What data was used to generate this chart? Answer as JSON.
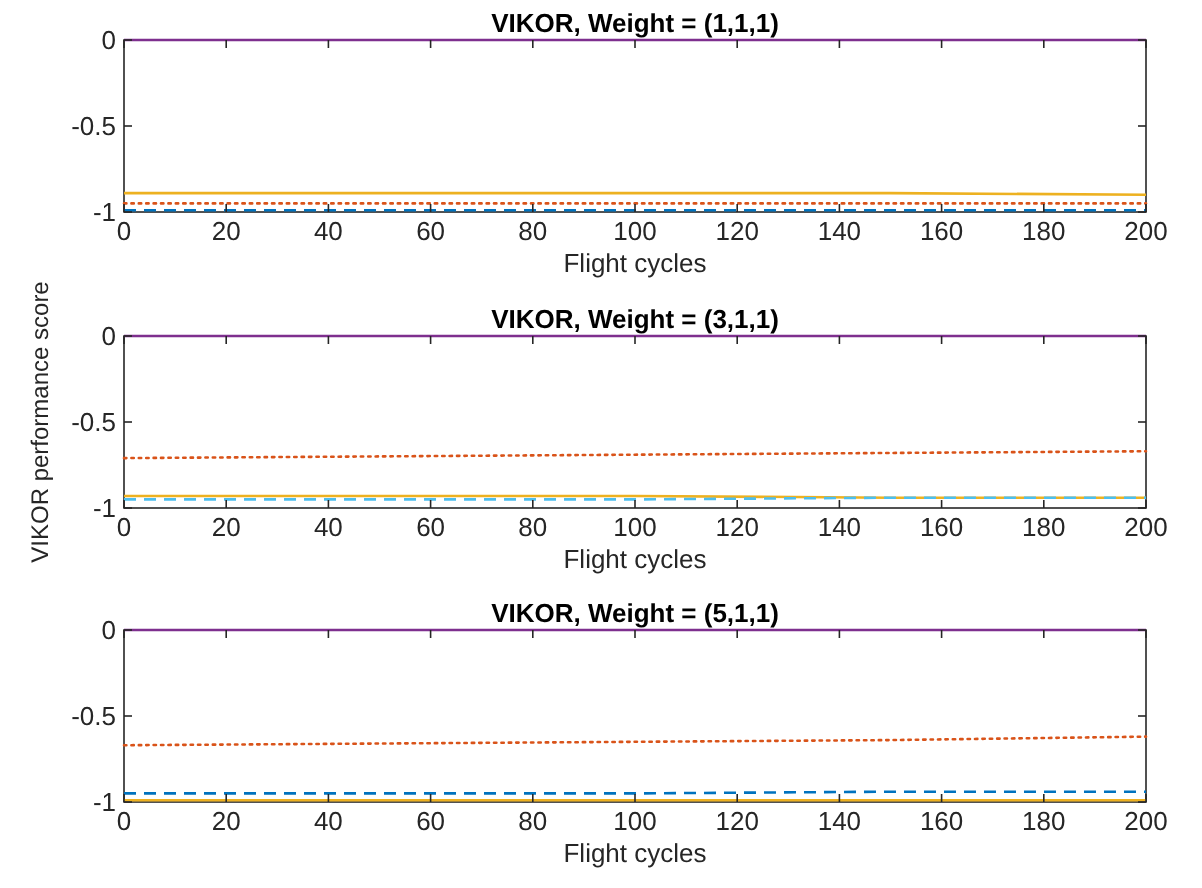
{
  "chart_data": [
    {
      "type": "line",
      "title": "VIKOR, Weight = (1,1,1)",
      "xlabel": "Flight cycles",
      "x": [
        0,
        50,
        100,
        150,
        200
      ],
      "xlim": [
        0,
        200
      ],
      "xticks": [
        0,
        20,
        40,
        60,
        80,
        100,
        120,
        140,
        160,
        180,
        200
      ],
      "ylim": [
        -1,
        0
      ],
      "yticks": [
        -1,
        -0.5,
        0
      ],
      "grid": false,
      "marker": "none",
      "series": [
        {
          "color": "#7e2f8e",
          "line_style": "solid",
          "values": [
            0,
            0,
            0,
            0,
            0
          ]
        },
        {
          "color": "#edb120",
          "line_style": "solid",
          "values": [
            -0.89,
            -0.89,
            -0.89,
            -0.89,
            -0.9
          ]
        },
        {
          "color": "#d95319",
          "line_style": "dotted",
          "values": [
            -0.95,
            -0.95,
            -0.95,
            -0.95,
            -0.95
          ]
        },
        {
          "color": "#0072bd",
          "line_style": "dashed",
          "values": [
            -0.99,
            -0.99,
            -0.99,
            -0.99,
            -0.99
          ]
        }
      ]
    },
    {
      "type": "line",
      "title": "VIKOR, Weight = (3,1,1)",
      "xlabel": "Flight cycles",
      "ylabel": "VIKOR performance score",
      "x": [
        0,
        50,
        100,
        150,
        200
      ],
      "xlim": [
        0,
        200
      ],
      "xticks": [
        0,
        20,
        40,
        60,
        80,
        100,
        120,
        140,
        160,
        180,
        200
      ],
      "ylim": [
        -1,
        0
      ],
      "yticks": [
        -1,
        -0.5,
        0
      ],
      "grid": false,
      "marker": "none",
      "series": [
        {
          "color": "#7e2f8e",
          "line_style": "solid",
          "values": [
            0,
            0,
            0,
            0,
            0
          ]
        },
        {
          "color": "#d95319",
          "line_style": "dotted",
          "values": [
            -0.71,
            -0.7,
            -0.69,
            -0.68,
            -0.67
          ]
        },
        {
          "color": "#edb120",
          "line_style": "solid",
          "values": [
            -0.93,
            -0.93,
            -0.93,
            -0.94,
            -0.94
          ]
        },
        {
          "color": "#4dbeee",
          "line_style": "dashed",
          "values": [
            -0.95,
            -0.95,
            -0.95,
            -0.94,
            -0.94
          ]
        }
      ]
    },
    {
      "type": "line",
      "title": "VIKOR, Weight = (5,1,1)",
      "xlabel": "Flight cycles",
      "x": [
        0,
        50,
        100,
        150,
        200
      ],
      "xlim": [
        0,
        200
      ],
      "xticks": [
        0,
        20,
        40,
        60,
        80,
        100,
        120,
        140,
        160,
        180,
        200
      ],
      "ylim": [
        -1,
        0
      ],
      "yticks": [
        -1,
        -0.5,
        0
      ],
      "grid": false,
      "marker": "none",
      "series": [
        {
          "color": "#7e2f8e",
          "line_style": "solid",
          "values": [
            0,
            0,
            0,
            0,
            0
          ]
        },
        {
          "color": "#d95319",
          "line_style": "dotted",
          "values": [
            -0.67,
            -0.66,
            -0.65,
            -0.64,
            -0.62
          ]
        },
        {
          "color": "#0072bd",
          "line_style": "dashed",
          "values": [
            -0.95,
            -0.95,
            -0.95,
            -0.94,
            -0.94
          ]
        },
        {
          "color": "#edb120",
          "line_style": "solid",
          "values": [
            -0.99,
            -0.99,
            -0.99,
            -0.99,
            -0.99
          ]
        }
      ]
    }
  ]
}
